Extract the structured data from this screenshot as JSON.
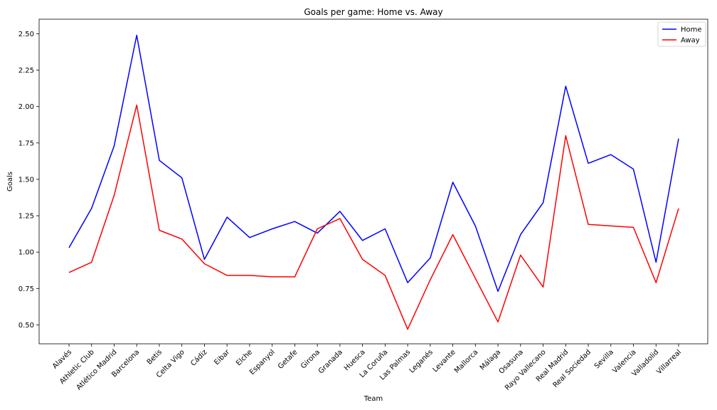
{
  "chart_data": {
    "type": "line",
    "title": "Goals per game: Home vs. Away",
    "xlabel": "Team",
    "ylabel": "Goals",
    "ylim": [
      0.37,
      2.6
    ],
    "yticks": [
      "0.50",
      "0.75",
      "1.00",
      "1.25",
      "1.50",
      "1.75",
      "2.00",
      "2.25",
      "2.50"
    ],
    "legend_position": "top-right",
    "grid": false,
    "categories": [
      "Alavés",
      "Athletic Club",
      "Atlético Madrid",
      "Barcelona",
      "Betis",
      "Celta Vigo",
      "Cádiz",
      "Eibar",
      "Elche",
      "Espanyol",
      "Getafe",
      "Girona",
      "Granada",
      "Huesca",
      "La Coruña",
      "Las Palmas",
      "Leganés",
      "Levante",
      "Mallorca",
      "Málaga",
      "Osasuna",
      "Rayo Vallecano",
      "Real Madrid",
      "Real Sociedad",
      "Sevilla",
      "Valencia",
      "Valladolid",
      "Villarreal"
    ],
    "series": [
      {
        "name": "Home",
        "color": "#0000ff",
        "values": [
          1.03,
          1.3,
          1.73,
          2.49,
          1.63,
          1.51,
          0.95,
          1.24,
          1.1,
          1.16,
          1.21,
          1.13,
          1.28,
          1.08,
          1.16,
          0.79,
          0.96,
          1.48,
          1.18,
          0.73,
          1.12,
          1.34,
          2.14,
          1.61,
          1.67,
          1.57,
          0.93,
          1.78
        ]
      },
      {
        "name": "Away",
        "color": "#ff0000",
        "values": [
          0.86,
          0.93,
          1.39,
          2.01,
          1.15,
          1.09,
          0.92,
          0.84,
          0.84,
          0.83,
          0.83,
          1.16,
          1.23,
          0.95,
          0.84,
          0.47,
          0.81,
          1.12,
          0.82,
          0.52,
          0.98,
          0.76,
          1.8,
          1.19,
          1.18,
          1.17,
          0.79,
          1.3
        ]
      }
    ]
  }
}
